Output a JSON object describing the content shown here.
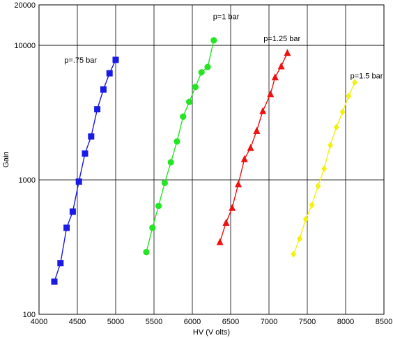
{
  "chart_data": {
    "type": "scatter",
    "title": "",
    "xlabel": "HV (V olts)",
    "ylabel": "Gain",
    "xlim": [
      4000,
      8500
    ],
    "ylim": [
      100,
      20000
    ],
    "yscale": "log",
    "grid": true,
    "x_ticks": [
      "4000",
      "4500",
      "5000",
      "5500",
      "6000",
      "6500",
      "7000",
      "7500",
      "8000",
      "8500"
    ],
    "y_ticks": [
      "100",
      "1000",
      "10000",
      "20000"
    ],
    "series": [
      {
        "name": "p=.75 bar",
        "color": "#1a1ae6",
        "marker": "square",
        "x": [
          4200,
          4280,
          4360,
          4440,
          4520,
          4600,
          4680,
          4760,
          4840,
          4920,
          5000
        ],
        "y": [
          175,
          240,
          440,
          580,
          970,
          1570,
          2100,
          3350,
          4700,
          6200,
          7800
        ]
      },
      {
        "name": "p=1 bar",
        "color": "#22e622",
        "marker": "circle",
        "x": [
          5400,
          5480,
          5560,
          5640,
          5720,
          5800,
          5880,
          5960,
          6040,
          6120,
          6200,
          6280
        ],
        "y": [
          290,
          440,
          640,
          950,
          1350,
          1930,
          2950,
          3800,
          4900,
          6300,
          6900,
          10900
        ]
      },
      {
        "name": "p=1.25 bar",
        "color": "#ee1111",
        "marker": "triangle",
        "x": [
          6360,
          6440,
          6520,
          6600,
          6680,
          6760,
          6840,
          6920,
          7020,
          7080,
          7160,
          7240
        ],
        "y": [
          345,
          480,
          620,
          930,
          1430,
          1730,
          2320,
          3250,
          4350,
          5800,
          7000,
          8800
        ]
      },
      {
        "name": "p=1.5 bar",
        "color": "#f2f20f",
        "marker": "diamond",
        "x": [
          7320,
          7400,
          7480,
          7560,
          7640,
          7720,
          7800,
          7880,
          7960,
          8040,
          8120
        ],
        "y": [
          280,
          365,
          510,
          650,
          900,
          1210,
          1810,
          2460,
          3200,
          4200,
          5300
        ]
      }
    ],
    "annotations": [
      {
        "text": "p=.75 bar",
        "x": 4330,
        "y": 7800
      },
      {
        "text": "p=1 bar",
        "x": 6270,
        "y": 16400
      },
      {
        "text": "p=1.25 bar",
        "x": 6930,
        "y": 11300
      },
      {
        "text": "p=1.5 bar",
        "x": 8060,
        "y": 5950
      }
    ]
  }
}
